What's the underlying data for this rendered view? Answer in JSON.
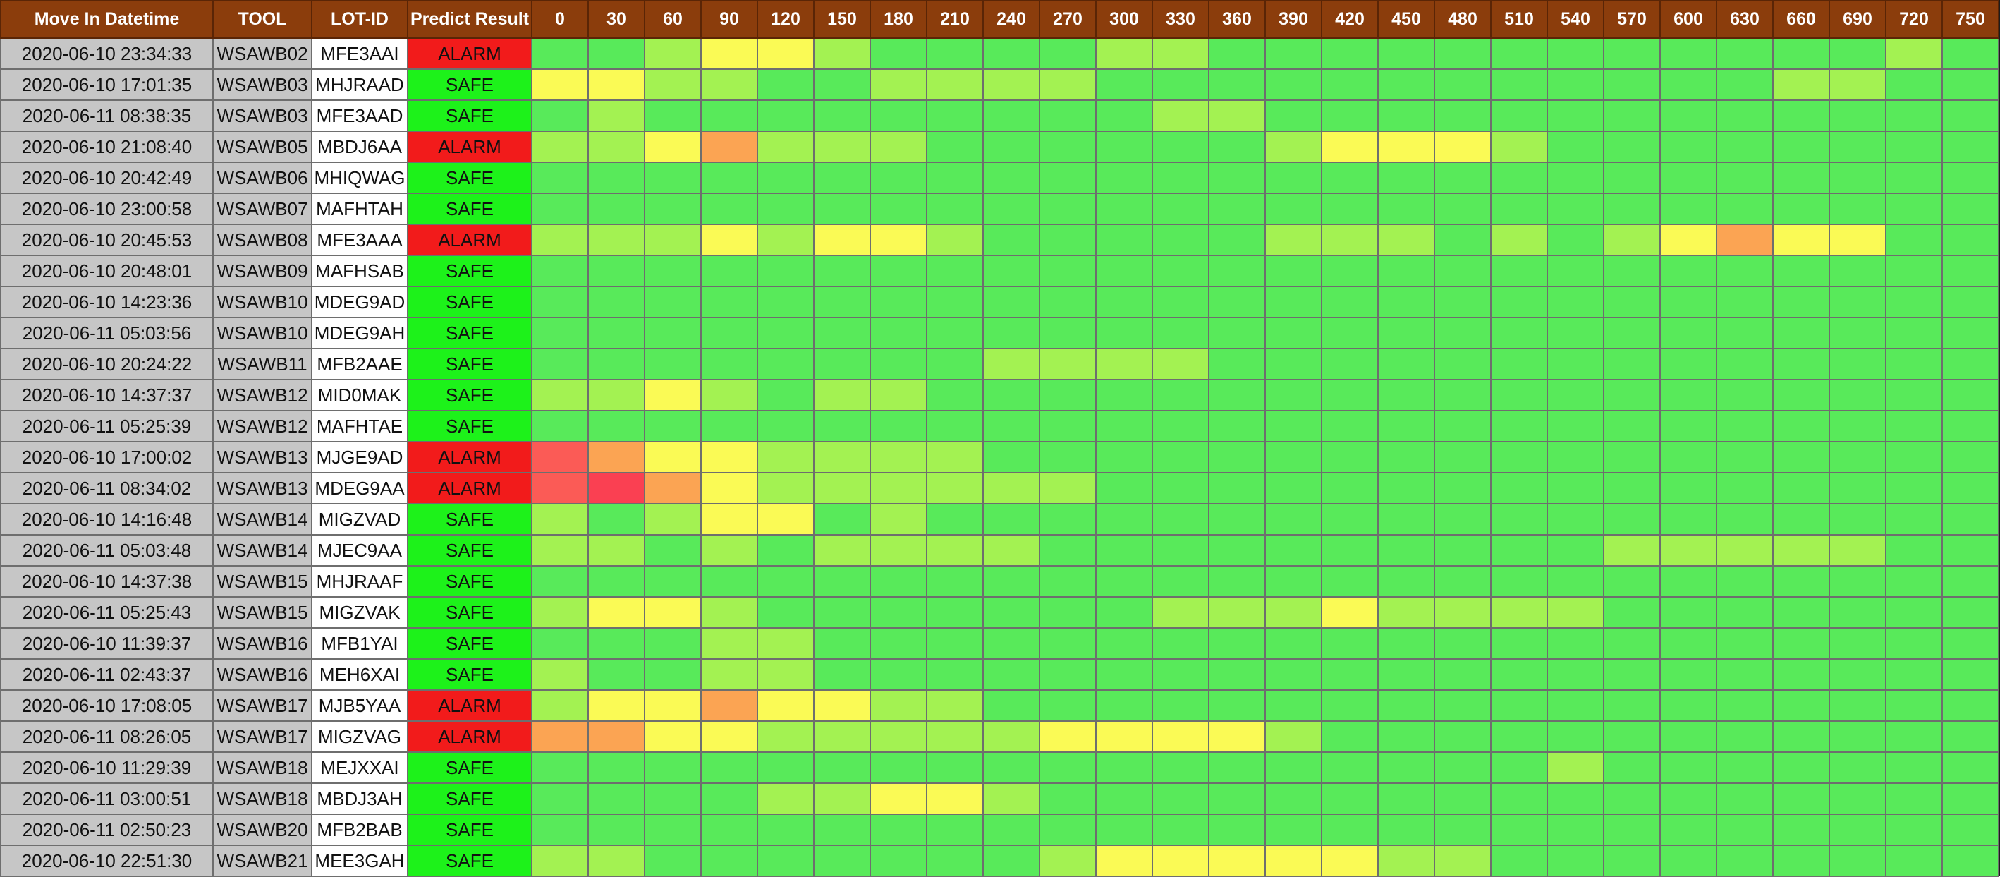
{
  "grid": {
    "headers": {
      "datetime": "Move In Datetime",
      "tool": "TOOL",
      "lot": "LOT-ID",
      "result": "Predict Result"
    },
    "time_columns": [
      "0",
      "30",
      "60",
      "90",
      "120",
      "150",
      "180",
      "210",
      "240",
      "270",
      "300",
      "330",
      "360",
      "390",
      "420",
      "450",
      "480",
      "510",
      "540",
      "570",
      "600",
      "630",
      "660",
      "690",
      "720",
      "750"
    ],
    "heat_colors": {
      "0": "#58ea5a",
      "1": "#a3f252",
      "2": "#fafa55",
      "3": "#fba453",
      "4": "#fb5b56",
      "5": "#fa4052"
    },
    "status_colors": {
      "ALARM": "#f21b1b",
      "SAFE": "#1df21a"
    },
    "rows": [
      {
        "datetime": "2020-06-10 23:34:33",
        "tool": "WSAWB02",
        "lot": "MFE3AAI",
        "result": "ALARM",
        "levels": [
          0,
          0,
          1,
          2,
          2,
          1,
          0,
          0,
          0,
          0,
          1,
          1,
          0,
          0,
          0,
          0,
          0,
          0,
          0,
          0,
          0,
          0,
          0,
          0,
          1,
          0
        ]
      },
      {
        "datetime": "2020-06-10 17:01:35",
        "tool": "WSAWB03",
        "lot": "MHJRAAD",
        "result": "SAFE",
        "levels": [
          2,
          2,
          1,
          1,
          0,
          0,
          1,
          1,
          1,
          1,
          0,
          0,
          0,
          0,
          0,
          0,
          0,
          0,
          0,
          0,
          0,
          0,
          1,
          1,
          0,
          0
        ]
      },
      {
        "datetime": "2020-06-11 08:38:35",
        "tool": "WSAWB03",
        "lot": "MFE3AAD",
        "result": "SAFE",
        "levels": [
          0,
          1,
          0,
          0,
          0,
          0,
          0,
          0,
          0,
          0,
          0,
          1,
          1,
          0,
          0,
          0,
          0,
          0,
          0,
          0,
          0,
          0,
          0,
          0,
          0,
          0
        ]
      },
      {
        "datetime": "2020-06-10 21:08:40",
        "tool": "WSAWB05",
        "lot": "MBDJ6AA",
        "result": "ALARM",
        "levels": [
          1,
          1,
          2,
          3,
          1,
          1,
          1,
          0,
          0,
          0,
          0,
          0,
          0,
          1,
          2,
          2,
          2,
          1,
          0,
          0,
          0,
          0,
          0,
          0,
          0,
          0
        ]
      },
      {
        "datetime": "2020-06-10 20:42:49",
        "tool": "WSAWB06",
        "lot": "MHIQWAG",
        "result": "SAFE",
        "levels": [
          0,
          0,
          0,
          0,
          0,
          0,
          0,
          0,
          0,
          0,
          0,
          0,
          0,
          0,
          0,
          0,
          0,
          0,
          0,
          0,
          0,
          0,
          0,
          0,
          0,
          0
        ]
      },
      {
        "datetime": "2020-06-10 23:00:58",
        "tool": "WSAWB07",
        "lot": "MAFHTAH",
        "result": "SAFE",
        "levels": [
          0,
          0,
          0,
          0,
          0,
          0,
          0,
          0,
          0,
          0,
          0,
          0,
          0,
          0,
          0,
          0,
          0,
          0,
          0,
          0,
          0,
          0,
          0,
          0,
          0,
          0
        ]
      },
      {
        "datetime": "2020-06-10 20:45:53",
        "tool": "WSAWB08",
        "lot": "MFE3AAA",
        "result": "ALARM",
        "levels": [
          1,
          1,
          1,
          2,
          1,
          2,
          2,
          1,
          0,
          0,
          0,
          0,
          0,
          1,
          1,
          1,
          0,
          1,
          0,
          1,
          2,
          3,
          2,
          2,
          0,
          0
        ]
      },
      {
        "datetime": "2020-06-10 20:48:01",
        "tool": "WSAWB09",
        "lot": "MAFHSAB",
        "result": "SAFE",
        "levels": [
          0,
          0,
          0,
          0,
          0,
          0,
          0,
          0,
          0,
          0,
          0,
          0,
          0,
          0,
          0,
          0,
          0,
          0,
          0,
          0,
          0,
          0,
          0,
          0,
          0,
          0
        ]
      },
      {
        "datetime": "2020-06-10 14:23:36",
        "tool": "WSAWB10",
        "lot": "MDEG9AD",
        "result": "SAFE",
        "levels": [
          0,
          0,
          0,
          0,
          0,
          0,
          0,
          0,
          0,
          0,
          0,
          0,
          0,
          0,
          0,
          0,
          0,
          0,
          0,
          0,
          0,
          0,
          0,
          0,
          0,
          0
        ]
      },
      {
        "datetime": "2020-06-11 05:03:56",
        "tool": "WSAWB10",
        "lot": "MDEG9AH",
        "result": "SAFE",
        "levels": [
          0,
          0,
          0,
          0,
          0,
          0,
          0,
          0,
          0,
          0,
          0,
          0,
          0,
          0,
          0,
          0,
          0,
          0,
          0,
          0,
          0,
          0,
          0,
          0,
          0,
          0
        ]
      },
      {
        "datetime": "2020-06-10 20:24:22",
        "tool": "WSAWB11",
        "lot": "MFB2AAE",
        "result": "SAFE",
        "levels": [
          0,
          0,
          0,
          0,
          0,
          0,
          0,
          0,
          1,
          1,
          1,
          1,
          0,
          0,
          0,
          0,
          0,
          0,
          0,
          0,
          0,
          0,
          0,
          0,
          0,
          0
        ]
      },
      {
        "datetime": "2020-06-10 14:37:37",
        "tool": "WSAWB12",
        "lot": "MID0MAK",
        "result": "SAFE",
        "levels": [
          1,
          1,
          2,
          1,
          0,
          1,
          1,
          0,
          0,
          0,
          0,
          0,
          0,
          0,
          0,
          0,
          0,
          0,
          0,
          0,
          0,
          0,
          0,
          0,
          0,
          0
        ]
      },
      {
        "datetime": "2020-06-11 05:25:39",
        "tool": "WSAWB12",
        "lot": "MAFHTAE",
        "result": "SAFE",
        "levels": [
          0,
          0,
          0,
          0,
          0,
          0,
          0,
          0,
          0,
          0,
          0,
          0,
          0,
          0,
          0,
          0,
          0,
          0,
          0,
          0,
          0,
          0,
          0,
          0,
          0,
          0
        ]
      },
      {
        "datetime": "2020-06-10 17:00:02",
        "tool": "WSAWB13",
        "lot": "MJGE9AD",
        "result": "ALARM",
        "levels": [
          4,
          3,
          2,
          2,
          1,
          1,
          1,
          1,
          0,
          0,
          0,
          0,
          0,
          0,
          0,
          0,
          0,
          0,
          0,
          0,
          0,
          0,
          0,
          0,
          0,
          0
        ]
      },
      {
        "datetime": "2020-06-11 08:34:02",
        "tool": "WSAWB13",
        "lot": "MDEG9AA",
        "result": "ALARM",
        "levels": [
          4,
          5,
          3,
          2,
          1,
          1,
          1,
          1,
          1,
          1,
          0,
          0,
          0,
          0,
          0,
          0,
          0,
          0,
          0,
          0,
          0,
          0,
          0,
          0,
          0,
          0
        ]
      },
      {
        "datetime": "2020-06-10 14:16:48",
        "tool": "WSAWB14",
        "lot": "MIGZVAD",
        "result": "SAFE",
        "levels": [
          1,
          0,
          1,
          2,
          2,
          0,
          1,
          0,
          0,
          0,
          0,
          0,
          0,
          0,
          0,
          0,
          0,
          0,
          0,
          0,
          0,
          0,
          0,
          0,
          0,
          0
        ]
      },
      {
        "datetime": "2020-06-11 05:03:48",
        "tool": "WSAWB14",
        "lot": "MJEC9AA",
        "result": "SAFE",
        "levels": [
          1,
          1,
          0,
          1,
          0,
          1,
          1,
          1,
          1,
          0,
          0,
          0,
          0,
          0,
          0,
          0,
          0,
          0,
          0,
          1,
          1,
          1,
          1,
          1,
          0,
          0
        ]
      },
      {
        "datetime": "2020-06-10 14:37:38",
        "tool": "WSAWB15",
        "lot": "MHJRAAF",
        "result": "SAFE",
        "levels": [
          0,
          0,
          0,
          0,
          0,
          0,
          0,
          0,
          0,
          0,
          0,
          0,
          0,
          0,
          0,
          0,
          0,
          0,
          0,
          0,
          0,
          0,
          0,
          0,
          0,
          0
        ]
      },
      {
        "datetime": "2020-06-11 05:25:43",
        "tool": "WSAWB15",
        "lot": "MIGZVAK",
        "result": "SAFE",
        "levels": [
          1,
          2,
          2,
          1,
          0,
          0,
          0,
          0,
          0,
          0,
          0,
          1,
          1,
          1,
          2,
          1,
          1,
          1,
          1,
          0,
          0,
          0,
          0,
          0,
          0,
          0
        ]
      },
      {
        "datetime": "2020-06-10 11:39:37",
        "tool": "WSAWB16",
        "lot": "MFB1YAI",
        "result": "SAFE",
        "levels": [
          0,
          0,
          0,
          1,
          1,
          0,
          0,
          0,
          0,
          0,
          0,
          0,
          0,
          0,
          0,
          0,
          0,
          0,
          0,
          0,
          0,
          0,
          0,
          0,
          0,
          0
        ]
      },
      {
        "datetime": "2020-06-11 02:43:37",
        "tool": "WSAWB16",
        "lot": "MEH6XAI",
        "result": "SAFE",
        "levels": [
          1,
          0,
          0,
          1,
          1,
          0,
          0,
          0,
          0,
          0,
          0,
          0,
          0,
          0,
          0,
          0,
          0,
          0,
          0,
          0,
          0,
          0,
          0,
          0,
          0,
          0
        ]
      },
      {
        "datetime": "2020-06-10 17:08:05",
        "tool": "WSAWB17",
        "lot": "MJB5YAA",
        "result": "ALARM",
        "levels": [
          1,
          2,
          2,
          3,
          2,
          2,
          1,
          1,
          0,
          0,
          0,
          0,
          0,
          0,
          0,
          0,
          0,
          0,
          0,
          0,
          0,
          0,
          0,
          0,
          0,
          0
        ]
      },
      {
        "datetime": "2020-06-11 08:26:05",
        "tool": "WSAWB17",
        "lot": "MIGZVAG",
        "result": "ALARM",
        "levels": [
          3,
          3,
          2,
          2,
          1,
          1,
          1,
          1,
          1,
          2,
          2,
          2,
          2,
          1,
          0,
          0,
          0,
          0,
          0,
          0,
          0,
          0,
          0,
          0,
          0,
          0
        ]
      },
      {
        "datetime": "2020-06-10 11:29:39",
        "tool": "WSAWB18",
        "lot": "MEJXXAI",
        "result": "SAFE",
        "levels": [
          0,
          0,
          0,
          0,
          0,
          0,
          0,
          0,
          0,
          0,
          0,
          0,
          0,
          0,
          0,
          0,
          0,
          0,
          1,
          0,
          0,
          0,
          0,
          0,
          0,
          0
        ]
      },
      {
        "datetime": "2020-06-11 03:00:51",
        "tool": "WSAWB18",
        "lot": "MBDJ3AH",
        "result": "SAFE",
        "levels": [
          0,
          0,
          0,
          0,
          1,
          1,
          2,
          2,
          1,
          0,
          0,
          0,
          0,
          0,
          0,
          0,
          0,
          0,
          0,
          0,
          0,
          0,
          0,
          0,
          0,
          0
        ]
      },
      {
        "datetime": "2020-06-11 02:50:23",
        "tool": "WSAWB20",
        "lot": "MFB2BAB",
        "result": "SAFE",
        "levels": [
          0,
          0,
          0,
          0,
          0,
          0,
          0,
          0,
          0,
          0,
          0,
          0,
          0,
          0,
          0,
          0,
          0,
          0,
          0,
          0,
          0,
          0,
          0,
          0,
          0,
          0
        ]
      },
      {
        "datetime": "2020-06-10 22:51:30",
        "tool": "WSAWB21",
        "lot": "MEE3GAH",
        "result": "SAFE",
        "levels": [
          1,
          1,
          0,
          0,
          0,
          0,
          0,
          0,
          0,
          1,
          2,
          2,
          2,
          2,
          2,
          1,
          1,
          0,
          0,
          0,
          0,
          0,
          0,
          0,
          0,
          0
        ]
      }
    ]
  }
}
